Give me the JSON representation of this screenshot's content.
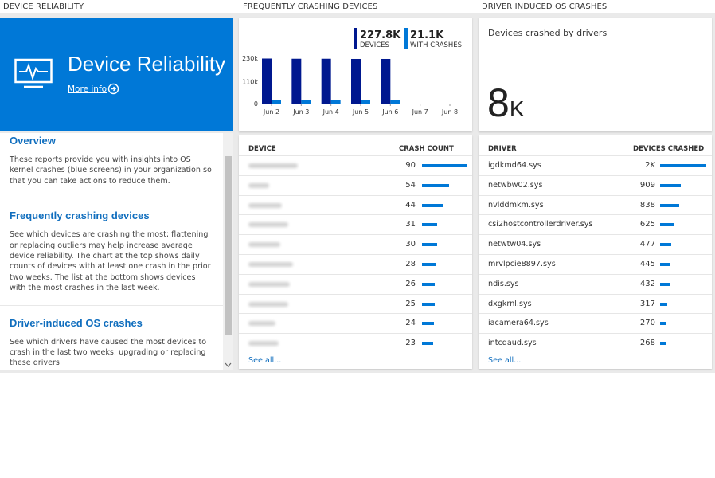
{
  "device_reliability": {
    "header": "DEVICE RELIABILITY",
    "title": "Device Reliability",
    "more_info": "More info",
    "articles": [
      {
        "heading": "Overview",
        "body": "These reports provide you with insights into OS kernel crashes (blue screens) in your organization so that you can take actions to reduce them."
      },
      {
        "heading": "Frequently crashing devices",
        "body": "See which devices are crashing the most; flattening or replacing outliers may help increase average device reliability. The chart at the top shows daily counts of devices with at least one crash in the prior two weeks. The list at the bottom shows devices with the most crashes in the last week."
      },
      {
        "heading": "Driver-induced OS crashes",
        "body": "See which drivers have caused the most devices to crash in the last two weeks; upgrading or replacing these drivers"
      }
    ]
  },
  "frequently_crashing_devices": {
    "header": "FREQUENTLY CRASHING DEVICES",
    "table": {
      "columns": [
        "DEVICE",
        "CRASH COUNT"
      ],
      "values": [
        90,
        54,
        44,
        31,
        30,
        28,
        26,
        25,
        24,
        23
      ],
      "see_all": "See all..."
    }
  },
  "chart_data": {
    "type": "bar",
    "categories": [
      "Jun 2",
      "Jun 3",
      "Jun 4",
      "Jun 5",
      "Jun 6",
      "Jun 7",
      "Jun 8"
    ],
    "series": [
      {
        "name": "DEVICES",
        "total": "227.8K",
        "color": "#00188f",
        "values": [
          228000,
          227000,
          227000,
          226000,
          226000,
          null,
          null
        ]
      },
      {
        "name": "WITH CRASHES",
        "total": "21.1K",
        "color": "#0078d7",
        "values": [
          20000,
          20000,
          20000,
          20000,
          20000,
          null,
          null
        ]
      }
    ],
    "ylim": [
      0,
      230000
    ],
    "yticks": [
      0,
      {
        "value": 110000,
        "label": "110k"
      },
      {
        "value": 230000,
        "label": "230k"
      }
    ]
  },
  "driver_induced_os_crashes": {
    "header": "DRIVER INDUCED OS CRASHES",
    "card_title": "Devices crashed by drivers",
    "big_number": "8",
    "big_unit": "K",
    "table": {
      "columns": [
        "DRIVER",
        "DEVICES CRASHED"
      ],
      "drivers": [
        "igdkmd64.sys",
        "netwbw02.sys",
        "nvlddmkm.sys",
        "csi2hostcontrollerdriver.sys",
        "netwtw04.sys",
        "mrvlpcie8897.sys",
        "ndis.sys",
        "dxgkrnl.sys",
        "iacamera64.sys",
        "intcdaud.sys"
      ],
      "values": [
        2000,
        909,
        838,
        625,
        477,
        445,
        432,
        317,
        270,
        268
      ],
      "value_labels": [
        "2K",
        "909",
        "838",
        "625",
        "477",
        "445",
        "432",
        "317",
        "270",
        "268"
      ],
      "see_all": "See all..."
    }
  }
}
